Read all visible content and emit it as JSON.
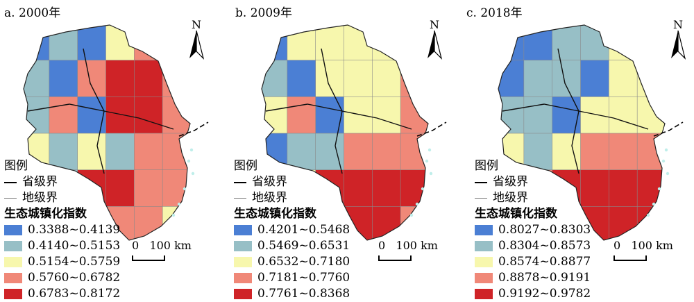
{
  "colors": {
    "class1": "#4b7fd4",
    "class2": "#97bfc6",
    "class3": "#f7f7ad",
    "class4": "#f08878",
    "class5": "#cf2327",
    "sea_islands": "#bfeeea"
  },
  "north_label": "N",
  "legend_title": "图例",
  "province_label": "省级界",
  "city_label": "地级界",
  "index_title": "生态城镇化指数",
  "scale_label": "0   100 km",
  "panels": [
    {
      "title": "a. 2000年",
      "classes": [
        "0.3388~0.4139",
        "0.4140~0.5153",
        "0.5154~0.5759",
        "0.5760~0.6782",
        "0.6783~0.8172"
      ],
      "regions": [
        1,
        2,
        1,
        3,
        4,
        5,
        2,
        1,
        4,
        5,
        5,
        4,
        2,
        4,
        1,
        5,
        5,
        4,
        3,
        2,
        3,
        2,
        4,
        4,
        1,
        2,
        5,
        5,
        4,
        4,
        2,
        5,
        4,
        4,
        4,
        3
      ]
    },
    {
      "title": "b. 2009年",
      "classes": [
        "0.4201~0.5468",
        "0.5469~0.6531",
        "0.6532~0.7180",
        "0.7181~0.7760",
        "0.7761~0.8368"
      ],
      "regions": [
        1,
        3,
        3,
        3,
        3,
        3,
        2,
        1,
        3,
        3,
        3,
        4,
        3,
        4,
        1,
        3,
        3,
        4,
        1,
        2,
        2,
        4,
        4,
        4,
        1,
        3,
        5,
        5,
        5,
        5,
        2,
        4,
        5,
        5,
        5,
        4
      ]
    },
    {
      "title": "c. 2018年",
      "classes": [
        "0.8027~0.8303",
        "0.8304~0.8573",
        "0.8574~0.8877",
        "0.8878~0.9191",
        "0.9192~0.9782"
      ],
      "regions": [
        1,
        1,
        2,
        2,
        3,
        3,
        1,
        2,
        2,
        1,
        3,
        3,
        2,
        2,
        1,
        3,
        3,
        3,
        3,
        2,
        3,
        4,
        4,
        4,
        3,
        4,
        5,
        5,
        5,
        5,
        5,
        5,
        5,
        5,
        5,
        5
      ]
    }
  ]
}
